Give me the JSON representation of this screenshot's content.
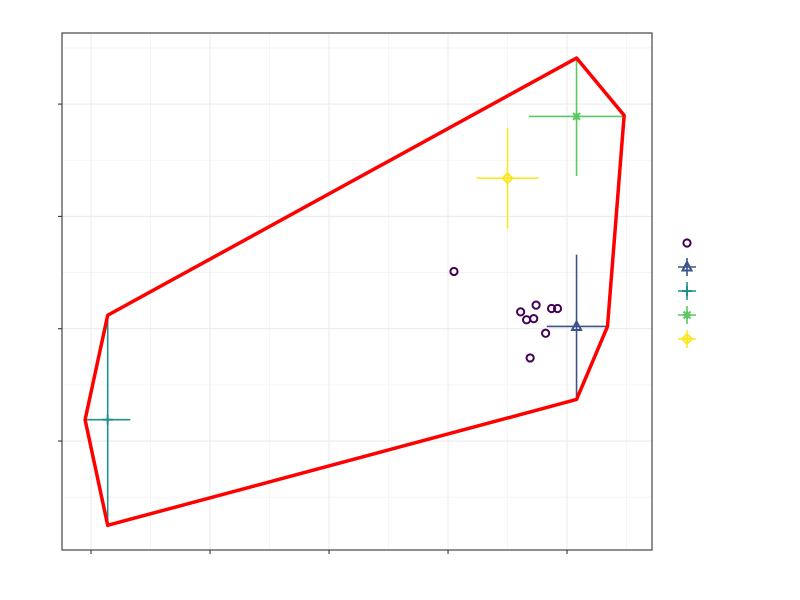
{
  "chart_data": {
    "type": "scatter",
    "xlim": [
      -0.244,
      4.714
    ],
    "ylim": [
      -0.97,
      3.633
    ],
    "xticks": [
      0,
      1,
      2,
      3,
      4
    ],
    "yticks": [
      0,
      1,
      2,
      3
    ],
    "grid": true,
    "legend": "right",
    "series": [
      {
        "color": "#440154",
        "marker": "circle",
        "x": [
          3.05,
          3.61,
          3.66,
          3.72,
          3.74,
          3.82,
          3.87,
          3.92,
          3.69
        ],
        "y": [
          1.51,
          1.15,
          1.08,
          1.09,
          1.21,
          0.96,
          1.18,
          1.18,
          0.74
        ]
      },
      {
        "color": "#3b528b",
        "marker": "triangle",
        "x": [
          4.08
        ],
        "y": [
          1.02
        ],
        "xerr": [
          0.25
        ],
        "yerr": [
          0.64
        ]
      },
      {
        "color": "#21908c",
        "marker": "plus",
        "x": [
          0.14
        ],
        "y": [
          0.19
        ],
        "xerr": [
          0.19
        ],
        "yerr": [
          0.94
        ]
      },
      {
        "color": "#5dc863",
        "marker": "asterisk",
        "x": [
          4.08
        ],
        "y": [
          2.89
        ],
        "xerr": [
          0.4
        ],
        "yerr": [
          0.53
        ]
      },
      {
        "color": "#fde725",
        "marker": "diamond-plus",
        "x": [
          3.5
        ],
        "y": [
          2.34
        ],
        "xerr": [
          0.26
        ],
        "yerr": [
          0.45
        ]
      }
    ],
    "hull": {
      "color": "#ff0000",
      "x": [
        0.14,
        4.08,
        4.48,
        4.34,
        4.08,
        0.14,
        -0.05
      ],
      "y": [
        1.12,
        3.41,
        2.9,
        1.02,
        0.37,
        -0.75,
        0.19
      ]
    }
  }
}
